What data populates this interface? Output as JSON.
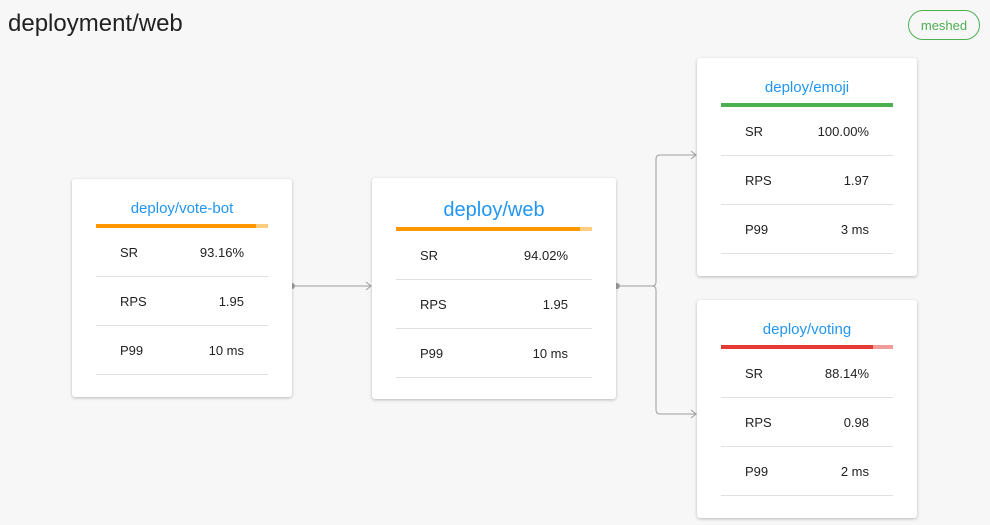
{
  "header": {
    "title": "deployment/web",
    "badge": "meshed"
  },
  "colors": {
    "link": "#2196f3",
    "warning": "#ff9800",
    "success": "#4caf50",
    "danger": "#e53935"
  },
  "nodes": [
    {
      "name": "deploy/vote-bot",
      "status_color": "#ff9800",
      "success_rate": 0.9316,
      "metrics": [
        {
          "label": "SR",
          "value": "93.16%"
        },
        {
          "label": "RPS",
          "value": "1.95"
        },
        {
          "label": "P99",
          "value": "10 ms"
        }
      ]
    },
    {
      "name": "deploy/web",
      "status_color": "#ff9800",
      "success_rate": 0.9402,
      "metrics": [
        {
          "label": "SR",
          "value": "94.02%"
        },
        {
          "label": "RPS",
          "value": "1.95"
        },
        {
          "label": "P99",
          "value": "10 ms"
        }
      ]
    },
    {
      "name": "deploy/emoji",
      "status_color": "#4caf50",
      "success_rate": 1.0,
      "metrics": [
        {
          "label": "SR",
          "value": "100.00%"
        },
        {
          "label": "RPS",
          "value": "1.97"
        },
        {
          "label": "P99",
          "value": "3 ms"
        }
      ]
    },
    {
      "name": "deploy/voting",
      "status_color": "#e53935",
      "success_rate": 0.8814,
      "metrics": [
        {
          "label": "SR",
          "value": "88.14%"
        },
        {
          "label": "RPS",
          "value": "0.98"
        },
        {
          "label": "P99",
          "value": "2 ms"
        }
      ]
    }
  ]
}
